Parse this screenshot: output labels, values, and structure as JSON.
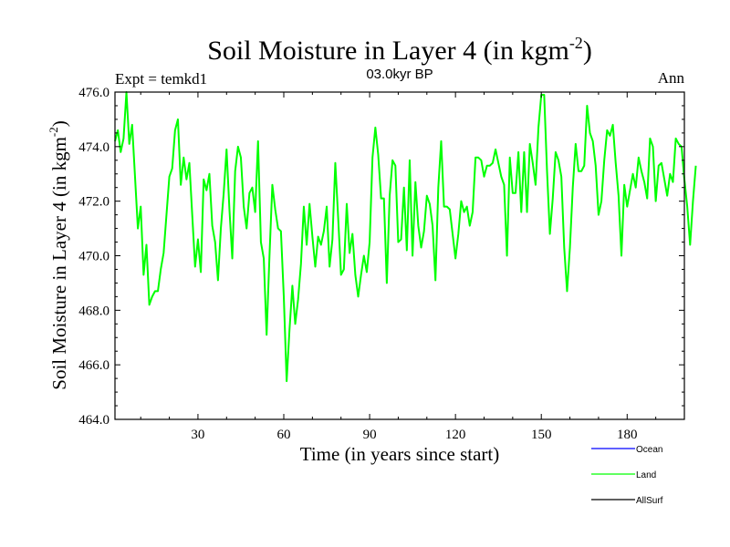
{
  "chart_data": {
    "type": "line",
    "title": "Soil Moisture in Layer 4 (in kgm",
    "title_sup": "-2",
    "title_close": ")",
    "subtitle_left": "Expt = temkd1",
    "subtitle_center": "03.0kyr BP",
    "subtitle_right": "Ann",
    "xlabel": "Time (in years since start)",
    "ylabel": "Soil Moisture in Layer 4 (in kgm",
    "ylabel_sup": "-2",
    "ylabel_close": ")",
    "xlim": [
      1,
      200
    ],
    "ylim": [
      464,
      476
    ],
    "x_ticks": [
      30,
      60,
      90,
      120,
      150,
      180
    ],
    "x_tick_labels": [
      "30",
      "60",
      "90",
      "120",
      "150",
      "180"
    ],
    "y_ticks": [
      464,
      466,
      468,
      470,
      472,
      474,
      476
    ],
    "y_tick_labels": [
      "464.0",
      "466.0",
      "468.0",
      "470.0",
      "472.0",
      "474.0",
      "476.0"
    ],
    "legend": [
      {
        "name": "Ocean",
        "color": "#0000ff"
      },
      {
        "name": "Land",
        "color": "#00ff00"
      },
      {
        "name": "AllSurf",
        "color": "#000000"
      }
    ],
    "series": [
      {
        "name": "Land",
        "color": "#00ff00",
        "x_start": 1,
        "values": [
          474.2,
          474.6,
          473.8,
          474.3,
          476.0,
          474.1,
          474.8,
          472.9,
          471.0,
          471.8,
          469.3,
          470.4,
          468.2,
          468.5,
          468.7,
          468.7,
          469.5,
          470.1,
          471.5,
          472.9,
          473.2,
          474.6,
          475.0,
          472.6,
          473.6,
          472.8,
          473.4,
          471.5,
          469.6,
          470.6,
          469.4,
          472.8,
          472.4,
          473.0,
          471.1,
          470.5,
          469.1,
          471.0,
          472.3,
          473.9,
          471.7,
          469.9,
          473.1,
          474.0,
          473.6,
          471.8,
          471.0,
          472.3,
          472.5,
          471.6,
          474.2,
          470.5,
          469.9,
          467.1,
          470.0,
          472.6,
          471.7,
          471.0,
          470.9,
          468.5,
          465.4,
          467.3,
          468.9,
          467.5,
          468.4,
          469.7,
          471.8,
          470.4,
          471.9,
          470.7,
          469.6,
          470.7,
          470.4,
          470.9,
          471.8,
          469.6,
          470.6,
          473.4,
          471.4,
          469.3,
          469.5,
          471.9,
          470.1,
          470.8,
          469.3,
          468.5,
          469.3,
          470.0,
          469.4,
          470.5,
          473.6,
          474.7,
          473.7,
          472.1,
          472.1,
          469.0,
          472.2,
          473.5,
          473.3,
          470.5,
          470.6,
          472.5,
          470.2,
          473.5,
          470.0,
          472.7,
          471.1,
          470.3,
          470.9,
          472.2,
          471.9,
          471.1,
          469.1,
          472.5,
          474.2,
          471.8,
          471.8,
          471.7,
          470.8,
          469.9,
          470.8,
          472.0,
          471.6,
          471.8,
          471.1,
          471.6,
          473.6,
          473.6,
          473.5,
          472.9,
          473.3,
          473.3,
          473.4,
          473.9,
          473.4,
          472.9,
          472.6,
          470.0,
          473.6,
          472.3,
          472.3,
          473.8,
          471.6,
          473.8,
          471.6,
          474.1,
          473.4,
          472.6,
          474.7,
          475.9,
          475.9,
          473.1,
          470.8,
          472.1,
          473.8,
          473.5,
          472.9,
          470.3,
          468.7,
          470.3,
          472.5,
          474.1,
          473.1,
          473.1,
          473.3,
          475.5,
          474.5,
          474.2,
          473.3,
          471.5,
          472.0,
          473.5,
          474.6,
          474.4,
          474.8,
          473.4,
          472.2,
          470.0,
          472.6,
          471.8,
          472.4,
          473.0,
          472.5,
          473.6,
          473.1,
          472.7,
          472.1,
          474.3,
          474.0,
          472.0,
          473.3,
          473.4,
          472.8,
          472.2,
          473.0,
          472.7,
          474.3,
          474.1,
          474.0,
          472.8,
          471.8,
          470.4,
          472.0,
          473.3
        ]
      }
    ]
  }
}
